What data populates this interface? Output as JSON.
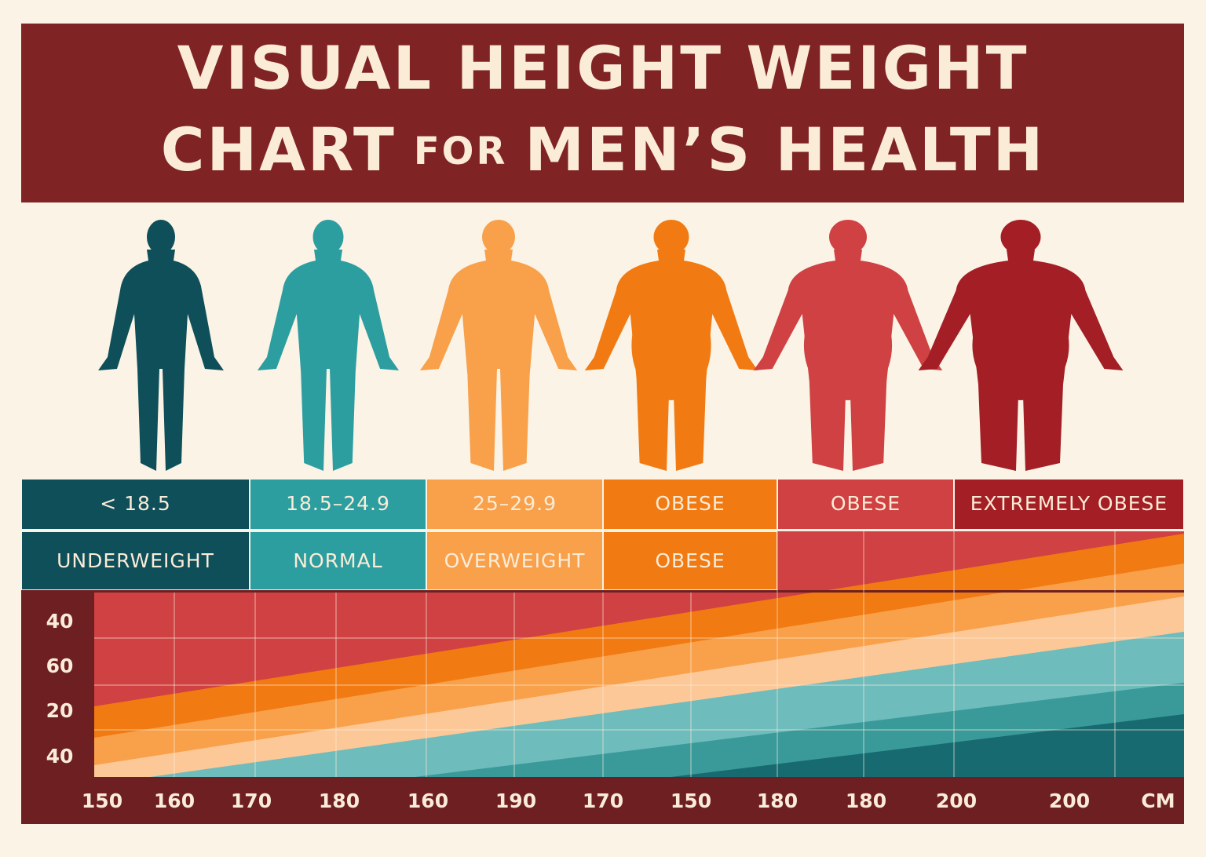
{
  "header": {
    "line1": "VISUAL HEIGHT WEIGHT",
    "line2": [
      "CHART",
      "FOR",
      "MEN’S HEALTH"
    ]
  },
  "table": {
    "ranges": [
      "< 18.5",
      "18.5–24.9",
      "25–29.9",
      "OBESE",
      "OBESE",
      "EXTREMELY OBESE"
    ],
    "categories": [
      "UNDERWEIGHT",
      "NORMAL",
      "OVERWEIGHT",
      "OBESE"
    ]
  },
  "axis": {
    "y_labels": [
      "40",
      "60",
      "20",
      "40"
    ],
    "x_labels": [
      "150",
      "160",
      "170",
      "180",
      "160",
      "190",
      "170",
      "150",
      "180",
      "180",
      "200",
      "200",
      "CM"
    ]
  }
}
